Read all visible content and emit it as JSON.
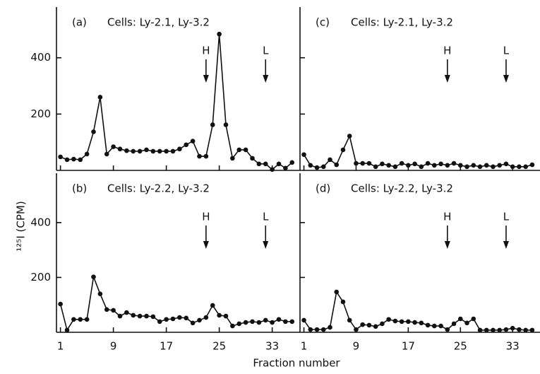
{
  "ylabel": "¹²⁵I (CPM)",
  "xlabel": "Fraction number",
  "chart_data": [
    {
      "type": "line",
      "label": "(a)",
      "title": "Cells: Ly-2.1, Ly-3.2",
      "color": "#111111",
      "x": [
        1,
        2,
        3,
        4,
        5,
        6,
        7,
        8,
        9,
        10,
        11,
        12,
        13,
        14,
        15,
        16,
        17,
        18,
        19,
        20,
        21,
        22,
        23,
        24,
        25,
        26,
        27,
        28,
        29,
        30,
        31,
        32,
        33,
        34,
        35,
        36
      ],
      "values": [
        48,
        38,
        40,
        38,
        58,
        137,
        260,
        58,
        84,
        76,
        70,
        68,
        68,
        73,
        68,
        68,
        68,
        68,
        76,
        91,
        104,
        50,
        50,
        162,
        484,
        162,
        43,
        73,
        73,
        43,
        23,
        23,
        3,
        23,
        8,
        28
      ],
      "xlim": [
        0.4,
        37.2
      ],
      "ylim": [
        0,
        580
      ],
      "xticks": [
        1,
        9,
        17,
        25,
        33
      ],
      "yticks": [
        200,
        400
      ],
      "xtick_labels": false,
      "ytick_labels": true,
      "annotations": [
        {
          "text": "H",
          "x": 23
        },
        {
          "text": "L",
          "x": 32
        }
      ]
    },
    {
      "type": "line",
      "label": "(c)",
      "title": "Cells: Ly-2.1, Ly-3.2",
      "color": "#111111",
      "x": [
        1,
        2,
        3,
        4,
        5,
        6,
        7,
        8,
        9,
        10,
        11,
        12,
        13,
        14,
        15,
        16,
        17,
        18,
        19,
        20,
        21,
        22,
        23,
        24,
        25,
        26,
        27,
        28,
        29,
        30,
        31,
        32,
        33,
        34,
        35,
        36
      ],
      "values": [
        56,
        18,
        10,
        13,
        38,
        20,
        73,
        122,
        25,
        25,
        25,
        13,
        23,
        18,
        13,
        25,
        18,
        23,
        13,
        25,
        18,
        23,
        18,
        25,
        18,
        13,
        18,
        13,
        18,
        13,
        18,
        23,
        13,
        13,
        13,
        20
      ],
      "xlim": [
        0.4,
        37.2
      ],
      "ylim": [
        0,
        580
      ],
      "xticks": [
        1,
        9,
        17,
        25,
        33
      ],
      "yticks": [
        200,
        400
      ],
      "xtick_labels": false,
      "ytick_labels": false,
      "annotations": [
        {
          "text": "H",
          "x": 23
        },
        {
          "text": "L",
          "x": 32
        }
      ]
    },
    {
      "type": "line",
      "label": "(b)",
      "title": "Cells: Ly-2.2, Ly-3.2",
      "color": "#111111",
      "x": [
        1,
        2,
        3,
        4,
        5,
        6,
        7,
        8,
        9,
        10,
        11,
        12,
        13,
        14,
        15,
        16,
        17,
        18,
        19,
        20,
        21,
        22,
        23,
        24,
        25,
        26,
        27,
        28,
        29,
        30,
        31,
        32,
        33,
        34,
        35,
        36
      ],
      "values": [
        103,
        8,
        47,
        47,
        47,
        202,
        140,
        83,
        80,
        59,
        72,
        62,
        59,
        59,
        57,
        39,
        47,
        49,
        54,
        52,
        34,
        44,
        54,
        98,
        62,
        59,
        23,
        31,
        36,
        39,
        36,
        44,
        36,
        47,
        39,
        39
      ],
      "xlim": [
        0.4,
        37.2
      ],
      "ylim": [
        0,
        580
      ],
      "xticks": [
        1,
        9,
        17,
        25,
        33
      ],
      "yticks": [
        200,
        400
      ],
      "xtick_labels": true,
      "ytick_labels": true,
      "annotations": [
        {
          "text": "H",
          "x": 23
        },
        {
          "text": "L",
          "x": 32
        }
      ]
    },
    {
      "type": "line",
      "label": "(d)",
      "title": "Cells: Ly-2.2, Ly-3.2",
      "color": "#111111",
      "x": [
        1,
        2,
        3,
        4,
        5,
        6,
        7,
        8,
        9,
        10,
        11,
        12,
        13,
        14,
        15,
        16,
        17,
        18,
        19,
        20,
        21,
        22,
        23,
        24,
        25,
        26,
        27,
        28,
        29,
        30,
        31,
        32,
        33,
        34,
        35,
        36
      ],
      "values": [
        44,
        10,
        10,
        10,
        18,
        147,
        111,
        44,
        10,
        28,
        26,
        21,
        31,
        47,
        41,
        39,
        39,
        36,
        34,
        26,
        23,
        23,
        10,
        31,
        49,
        34,
        49,
        8,
        8,
        8,
        8,
        10,
        15,
        10,
        8,
        8
      ],
      "xlim": [
        0.4,
        37.2
      ],
      "ylim": [
        0,
        580
      ],
      "xticks": [
        1,
        9,
        17,
        25,
        33
      ],
      "yticks": [
        200,
        400
      ],
      "xtick_labels": true,
      "ytick_labels": false,
      "annotations": [
        {
          "text": "H",
          "x": 23
        },
        {
          "text": "L",
          "x": 32
        }
      ]
    }
  ]
}
